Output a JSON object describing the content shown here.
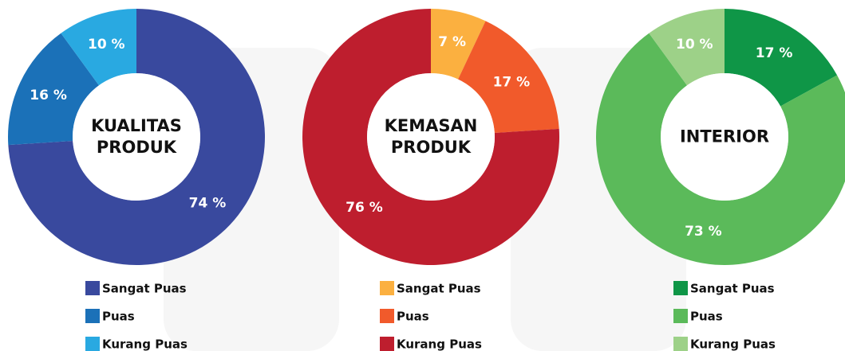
{
  "chart_data": [
    {
      "type": "donut",
      "title": "KUALITAS PRODUK",
      "categories": [
        "Sangat Puas",
        "Puas",
        "Kurang Puas"
      ],
      "values": [
        74,
        16,
        10
      ],
      "value_labels": [
        "74 %",
        "16 %",
        "10 %"
      ],
      "colors": [
        "#39499e",
        "#1b71b8",
        "#29a9e1"
      ]
    },
    {
      "type": "donut",
      "title": "KEMASAN PRODUK",
      "categories": [
        "Sangat Puas",
        "Puas",
        "Kurang Puas"
      ],
      "values": [
        7,
        17,
        76
      ],
      "value_labels": [
        "7 %",
        "17 %",
        "76 %"
      ],
      "colors": [
        "#fbb040",
        "#f15a2b",
        "#be1e2e"
      ]
    },
    {
      "type": "donut",
      "title": "INTERIOR",
      "categories": [
        "Sangat Puas",
        "Puas",
        "Kurang Puas"
      ],
      "values": [
        17,
        73,
        10
      ],
      "value_labels": [
        "17 %",
        "73 %",
        "10 %"
      ],
      "colors": [
        "#0f9647",
        "#5bba5a",
        "#9dd188"
      ]
    }
  ]
}
